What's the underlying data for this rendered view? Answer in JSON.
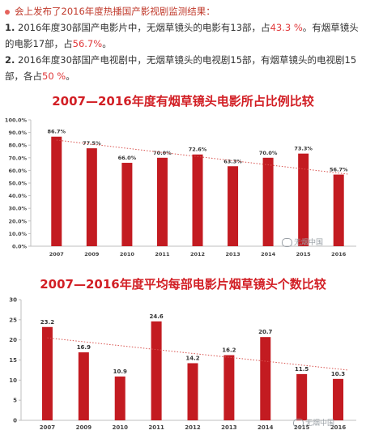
{
  "intro": {
    "header": "会上发布了2016年度热播国产影视剧监测结果：",
    "p1": {
      "num": "1.",
      "a": " 2016年度30部国产电影片中，无烟草镜头的电影有13部，占",
      "v1": "43.3 %",
      "b": "。有烟草镜头的电影17部，占",
      "v2": "56.7%",
      "c": "。"
    },
    "p2": {
      "num": "2.",
      "a": " 2016年度30部国产电视剧中，无烟草镜头的电视剧15部，有烟草镜头的电视剧15部，各占",
      "v1": "50 %",
      "b": "。"
    }
  },
  "colors": {
    "bar": "#c31b21",
    "trend": "#d9534f",
    "title": "#d21f25"
  },
  "watermark": {
    "icon": "wechat-icon",
    "text": "无烟中国"
  },
  "chart_data": [
    {
      "type": "bar",
      "title": "2007—2016年度有烟草镜头电影所占比例比较",
      "categories": [
        "2007",
        "2009",
        "2010",
        "2011",
        "2012",
        "2013",
        "2014",
        "2015",
        "2016"
      ],
      "values": [
        86.7,
        77.5,
        66.0,
        70.0,
        72.6,
        63.3,
        70.0,
        73.3,
        56.7
      ],
      "value_labels": [
        "86.7%",
        "77.5%",
        "66.0%",
        "70.0%",
        "72.6%",
        "63.3%",
        "70.0%",
        "73.3%",
        "56.7%"
      ],
      "ylim": [
        0,
        100
      ],
      "yticks": [
        "0.0%",
        "10.0%",
        "20.0%",
        "30.0%",
        "40.0%",
        "50.0%",
        "60.0%",
        "70.0%",
        "80.0%",
        "90.0%",
        "100.0%"
      ],
      "trend": [
        84,
        57
      ],
      "grid": false
    },
    {
      "type": "bar",
      "title": "2007—2016年度平均每部电影片烟草镜头个数比较",
      "categories": [
        "2007",
        "2009",
        "2010",
        "2011",
        "2012",
        "2013",
        "2014",
        "2015",
        "2016"
      ],
      "values": [
        23.2,
        16.9,
        10.9,
        24.6,
        14.2,
        16.2,
        20.7,
        11.5,
        10.3
      ],
      "value_labels": [
        "23.2",
        "16.9",
        "10.9",
        "24.6",
        "14.2",
        "16.2",
        "20.7",
        "11.5",
        "10.3"
      ],
      "ylim": [
        0,
        30
      ],
      "yticks": [
        "0",
        "5",
        "10",
        "15",
        "20",
        "25",
        "30"
      ],
      "trend": [
        20.5,
        12.5
      ],
      "grid": false
    }
  ]
}
